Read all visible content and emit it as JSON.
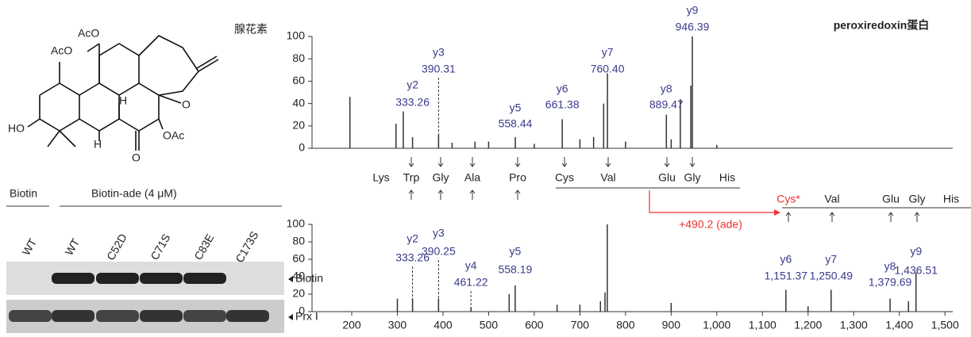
{
  "structure": {
    "name": "腺花素",
    "atoms": [
      "AcO",
      "AcO",
      "HO",
      "H",
      "H",
      "O",
      "OAc",
      "O"
    ]
  },
  "blot": {
    "groups": [
      "Biotin",
      "Biotin-ade (4 μM)"
    ],
    "lanes": [
      "WT",
      "WT",
      "C52D",
      "C71S",
      "C83E",
      "C173S"
    ],
    "rows": [
      "Biotin",
      "Prx I"
    ]
  },
  "sequence": {
    "top": [
      "Lys",
      "Trp",
      "Gly",
      "Ala",
      "Pro",
      "Cys",
      "Val",
      "Glu",
      "Gly",
      "His"
    ],
    "bottom": [
      "Cys*",
      "Val",
      "Glu",
      "Gly",
      "His"
    ],
    "modification": "+490.2 (ade)"
  },
  "chart_data": [
    {
      "type": "spectrum",
      "title": "peroxiredoxin蛋白",
      "color": "#333333",
      "x": [
        196,
        297,
        313,
        333.26,
        390.31,
        420,
        470,
        500,
        558.44,
        600,
        661.38,
        700,
        730,
        752,
        760.4,
        800,
        889.47,
        900,
        920,
        943,
        946.39,
        1000
      ],
      "values": [
        46,
        22,
        33,
        10,
        12,
        5,
        6,
        6,
        10,
        4,
        26,
        8,
        10,
        40,
        67,
        6,
        30,
        8,
        44,
        56,
        100,
        3
      ],
      "annotations": [
        {
          "ion": "y2",
          "mz": "333.26"
        },
        {
          "ion": "y3",
          "mz": "390.31"
        },
        {
          "ion": "y5",
          "mz": "558.44"
        },
        {
          "ion": "y6",
          "mz": "661.38"
        },
        {
          "ion": "y7",
          "mz": "760.40"
        },
        {
          "ion": "y8",
          "mz": "889.47"
        },
        {
          "ion": "y9",
          "mz": "946.39"
        }
      ],
      "xlim": [
        113,
        1517
      ],
      "ylim": [
        0,
        100
      ],
      "yticks": [
        0,
        20,
        40,
        60,
        80,
        100
      ]
    },
    {
      "type": "spectrum",
      "color": "#333333",
      "x": [
        300,
        333.26,
        390.25,
        461.22,
        545,
        558.19,
        650,
        700,
        745,
        755,
        760,
        900,
        1151.37,
        1200,
        1250.49,
        1379.69,
        1420,
        1436.51
      ],
      "values": [
        15,
        15,
        15,
        5,
        20,
        30,
        8,
        8,
        12,
        22,
        100,
        10,
        25,
        6,
        25,
        15,
        12,
        45
      ],
      "annotations": [
        {
          "ion": "y2",
          "mz": "333.26"
        },
        {
          "ion": "y3",
          "mz": "390.25"
        },
        {
          "ion": "y4",
          "mz": "461.22"
        },
        {
          "ion": "y5",
          "mz": "558.19"
        },
        {
          "ion": "y6",
          "mz": "1,151.37"
        },
        {
          "ion": "y7",
          "mz": "1,250.49"
        },
        {
          "ion": "y8",
          "mz": "1,379.69"
        },
        {
          "ion": "y9",
          "mz": "1,436.51"
        }
      ],
      "xlim": [
        113,
        1517
      ],
      "ylim": [
        0,
        100
      ],
      "yticks": [
        0,
        20,
        40,
        60,
        80,
        100
      ],
      "xticks": [
        200,
        300,
        400,
        500,
        600,
        700,
        800,
        900,
        {
          "value": 1000,
          "label": "1,000"
        },
        {
          "value": 1100,
          "label": "1,100"
        },
        {
          "value": 1200,
          "label": "1,200"
        },
        {
          "value": 1300,
          "label": "1,300"
        },
        {
          "value": 1400,
          "label": "1,400"
        },
        {
          "value": 1500,
          "label": "1,500"
        }
      ]
    }
  ]
}
